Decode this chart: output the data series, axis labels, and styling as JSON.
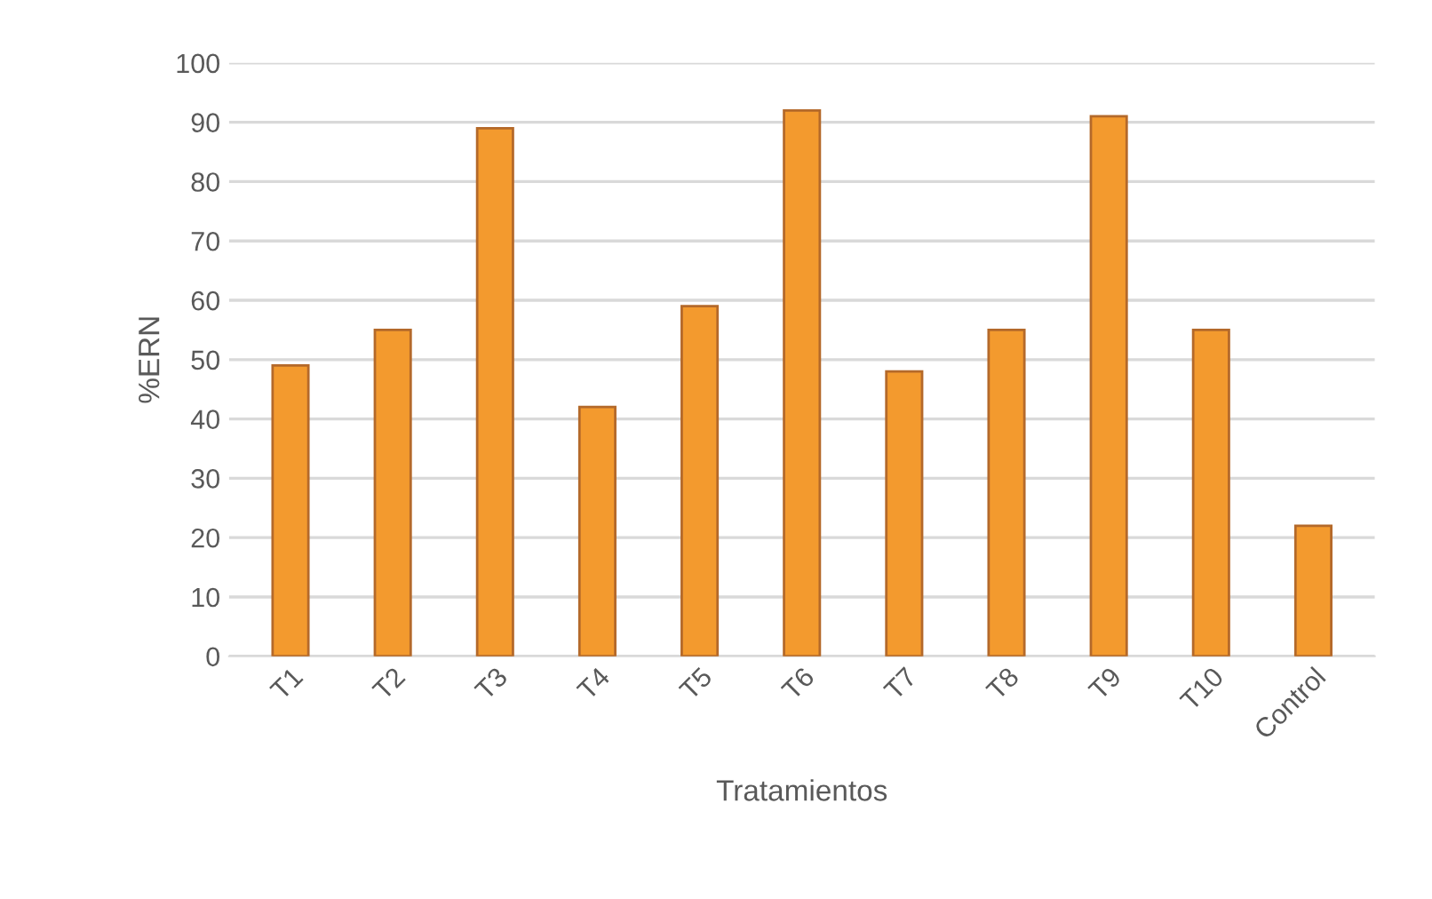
{
  "chart_data": {
    "type": "bar",
    "xlabel": "Tratamientos",
    "ylabel": "%ERN",
    "categories": [
      "T1",
      "T2",
      "T3",
      "T4",
      "T5",
      "T6",
      "T7",
      "T8",
      "T9",
      "T10",
      "Control"
    ],
    "values": [
      49,
      55,
      89,
      42,
      59,
      92,
      48,
      55,
      91,
      55,
      22
    ],
    "color": "#f39a2e",
    "ylim": [
      0,
      100
    ],
    "yticks": [
      0,
      10,
      20,
      30,
      40,
      50,
      60,
      70,
      80,
      90,
      100
    ],
    "grid": "y"
  }
}
